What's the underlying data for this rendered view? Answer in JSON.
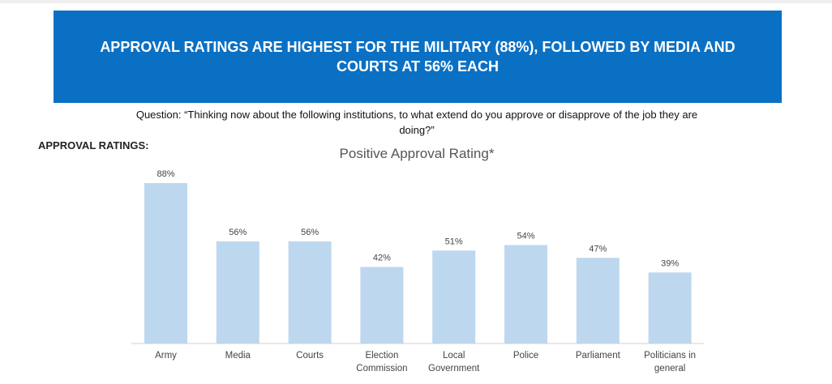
{
  "banner": {
    "title": "APPROVAL RATINGS ARE HIGHEST FOR THE MILITARY (88%), FOLLOWED BY MEDIA AND COURTS AT 56% EACH",
    "background": "#0a70c4"
  },
  "question": "Question: “Thinking now about the following institutions, to what extend do you approve or disapprove of the job they are doing?”",
  "section_label": "APPROVAL RATINGS:",
  "chart_data": {
    "type": "bar",
    "title": "Positive Approval Rating*",
    "categories": [
      [
        "Army"
      ],
      [
        "Media"
      ],
      [
        "Courts"
      ],
      [
        "Election",
        "Commission"
      ],
      [
        "Local",
        "Government"
      ],
      [
        "Police"
      ],
      [
        "Parliament"
      ],
      [
        "Politicians in",
        "general"
      ]
    ],
    "values": [
      88,
      56,
      56,
      42,
      51,
      54,
      47,
      39
    ],
    "value_labels": [
      "88%",
      "56%",
      "56%",
      "42%",
      "51%",
      "54%",
      "47%",
      "39%"
    ],
    "bar_color": "#bdd7ee",
    "axis_color": "#d0d0d0",
    "ylim": [
      0,
      100
    ],
    "grid": false,
    "legend": "none"
  }
}
